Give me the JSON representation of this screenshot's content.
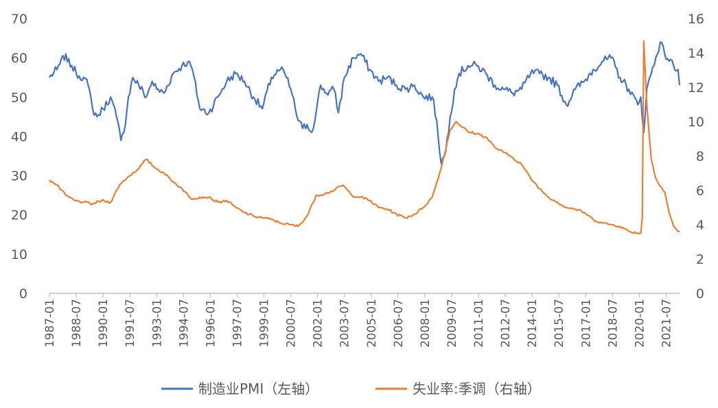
{
  "chart_data": {
    "type": "line",
    "title": "",
    "y_left": {
      "min": 0,
      "max": 70,
      "step": 10,
      "ticks": [
        "0",
        "10",
        "20",
        "30",
        "40",
        "50",
        "60",
        "70"
      ]
    },
    "y_right": {
      "min": 0,
      "max": 16,
      "step": 2,
      "ticks": [
        "0",
        "2",
        "4",
        "6",
        "8",
        "10",
        "12",
        "14",
        "16"
      ]
    },
    "x_range": [
      "1987-01",
      "2022-04"
    ],
    "x_tick_labels": [
      "1987-01",
      "1988-07",
      "1990-01",
      "1991-07",
      "1993-01",
      "1994-07",
      "1996-01",
      "1997-07",
      "1999-01",
      "2000-07",
      "2002-01",
      "2003-07",
      "2005-01",
      "2006-07",
      "2008-01",
      "2009-07",
      "2011-01",
      "2012-07",
      "2014-01",
      "2015-07",
      "2017-01",
      "2018-07",
      "2020-01",
      "2021-07"
    ],
    "grid": false,
    "legend_position": "bottom",
    "series": [
      {
        "name": "制造业PMI（左轴）",
        "axis": "left",
        "color": "#4472C4",
        "points": [
          [
            "1987-01",
            55
          ],
          [
            "1987-06",
            57
          ],
          [
            "1987-12",
            61
          ],
          [
            "1988-01",
            59
          ],
          [
            "1988-04",
            58
          ],
          [
            "1988-07",
            56
          ],
          [
            "1988-12",
            55
          ],
          [
            "1989-03",
            53
          ],
          [
            "1989-06",
            47
          ],
          [
            "1989-09",
            45
          ],
          [
            "1990-01",
            47
          ],
          [
            "1990-06",
            50
          ],
          [
            "1990-10",
            45
          ],
          [
            "1991-01",
            39
          ],
          [
            "1991-03",
            41
          ],
          [
            "1991-06",
            50
          ],
          [
            "1991-09",
            55
          ],
          [
            "1992-01",
            53
          ],
          [
            "1992-06",
            50
          ],
          [
            "1992-10",
            54
          ],
          [
            "1993-01",
            52
          ],
          [
            "1993-06",
            51
          ],
          [
            "1993-12",
            56
          ],
          [
            "1994-06",
            58
          ],
          [
            "1994-10",
            59
          ],
          [
            "1995-01",
            57
          ],
          [
            "1995-06",
            47
          ],
          [
            "1995-12",
            46
          ],
          [
            "1996-06",
            50
          ],
          [
            "1996-12",
            54
          ],
          [
            "1997-06",
            56
          ],
          [
            "1997-12",
            54
          ],
          [
            "1998-06",
            50
          ],
          [
            "1998-12",
            47
          ],
          [
            "1999-06",
            55
          ],
          [
            "1999-12",
            57
          ],
          [
            "2000-03",
            56
          ],
          [
            "2000-07",
            52
          ],
          [
            "2000-12",
            44
          ],
          [
            "2001-03",
            42
          ],
          [
            "2001-06",
            43
          ],
          [
            "2001-09",
            41
          ],
          [
            "2001-12",
            46
          ],
          [
            "2002-03",
            53
          ],
          [
            "2002-07",
            51
          ],
          [
            "2002-12",
            52
          ],
          [
            "2003-03",
            46
          ],
          [
            "2003-07",
            55
          ],
          [
            "2004-01",
            60
          ],
          [
            "2004-06",
            61
          ],
          [
            "2004-12",
            57
          ],
          [
            "2005-06",
            54
          ],
          [
            "2005-12",
            55
          ],
          [
            "2006-06",
            53
          ],
          [
            "2006-12",
            52
          ],
          [
            "2007-06",
            53
          ],
          [
            "2007-12",
            50
          ],
          [
            "2008-06",
            50
          ],
          [
            "2008-09",
            44
          ],
          [
            "2008-12",
            33
          ],
          [
            "2009-03",
            36
          ],
          [
            "2009-06",
            45
          ],
          [
            "2009-09",
            52
          ],
          [
            "2009-12",
            56
          ],
          [
            "2010-06",
            58
          ],
          [
            "2010-12",
            58
          ],
          [
            "2011-06",
            56
          ],
          [
            "2011-12",
            53
          ],
          [
            "2012-06",
            52
          ],
          [
            "2012-12",
            51
          ],
          [
            "2013-06",
            52
          ],
          [
            "2013-12",
            56
          ],
          [
            "2014-06",
            56
          ],
          [
            "2014-12",
            55
          ],
          [
            "2015-06",
            53
          ],
          [
            "2015-12",
            48
          ],
          [
            "2016-06",
            52
          ],
          [
            "2016-12",
            54
          ],
          [
            "2017-06",
            57
          ],
          [
            "2017-12",
            59
          ],
          [
            "2018-06",
            60
          ],
          [
            "2018-12",
            55
          ],
          [
            "2019-06",
            52
          ],
          [
            "2019-12",
            48
          ],
          [
            "2020-02",
            50
          ],
          [
            "2020-04",
            41
          ],
          [
            "2020-06",
            52
          ],
          [
            "2020-12",
            60
          ],
          [
            "2021-03",
            64
          ],
          [
            "2021-06",
            61
          ],
          [
            "2021-12",
            58
          ],
          [
            "2022-03",
            57
          ],
          [
            "2022-04",
            53
          ]
        ]
      },
      {
        "name": "失业率:季调（右轴）",
        "axis": "right",
        "color": "#ED7D31",
        "points": [
          [
            "1987-01",
            6.6
          ],
          [
            "1987-06",
            6.3
          ],
          [
            "1987-12",
            5.7
          ],
          [
            "1988-06",
            5.4
          ],
          [
            "1988-12",
            5.3
          ],
          [
            "1989-06",
            5.2
          ],
          [
            "1989-12",
            5.4
          ],
          [
            "1990-06",
            5.3
          ],
          [
            "1990-12",
            6.3
          ],
          [
            "1991-06",
            6.8
          ],
          [
            "1991-12",
            7.2
          ],
          [
            "1992-06",
            7.8
          ],
          [
            "1992-12",
            7.3
          ],
          [
            "1993-06",
            7.0
          ],
          [
            "1993-12",
            6.5
          ],
          [
            "1994-06",
            6.1
          ],
          [
            "1994-12",
            5.5
          ],
          [
            "1995-06",
            5.6
          ],
          [
            "1995-12",
            5.6
          ],
          [
            "1996-06",
            5.3
          ],
          [
            "1996-12",
            5.4
          ],
          [
            "1997-06",
            5.0
          ],
          [
            "1997-12",
            4.7
          ],
          [
            "1998-06",
            4.5
          ],
          [
            "1998-12",
            4.4
          ],
          [
            "1999-06",
            4.3
          ],
          [
            "1999-12",
            4.1
          ],
          [
            "2000-06",
            4.0
          ],
          [
            "2000-12",
            3.9
          ],
          [
            "2001-06",
            4.5
          ],
          [
            "2001-12",
            5.7
          ],
          [
            "2002-06",
            5.8
          ],
          [
            "2002-12",
            6.0
          ],
          [
            "2003-06",
            6.3
          ],
          [
            "2003-12",
            5.7
          ],
          [
            "2004-06",
            5.6
          ],
          [
            "2004-12",
            5.4
          ],
          [
            "2005-06",
            5.0
          ],
          [
            "2005-12",
            4.9
          ],
          [
            "2006-06",
            4.6
          ],
          [
            "2006-12",
            4.4
          ],
          [
            "2007-06",
            4.6
          ],
          [
            "2007-12",
            5.0
          ],
          [
            "2008-06",
            5.6
          ],
          [
            "2008-12",
            7.3
          ],
          [
            "2009-06",
            9.5
          ],
          [
            "2009-10",
            10.0
          ],
          [
            "2010-06",
            9.4
          ],
          [
            "2010-12",
            9.3
          ],
          [
            "2011-06",
            9.1
          ],
          [
            "2011-12",
            8.5
          ],
          [
            "2012-06",
            8.2
          ],
          [
            "2012-12",
            7.9
          ],
          [
            "2013-06",
            7.5
          ],
          [
            "2013-12",
            6.7
          ],
          [
            "2014-06",
            6.1
          ],
          [
            "2014-12",
            5.6
          ],
          [
            "2015-06",
            5.3
          ],
          [
            "2015-12",
            5.0
          ],
          [
            "2016-06",
            4.9
          ],
          [
            "2016-12",
            4.7
          ],
          [
            "2017-06",
            4.3
          ],
          [
            "2017-12",
            4.1
          ],
          [
            "2018-06",
            4.0
          ],
          [
            "2018-12",
            3.9
          ],
          [
            "2019-06",
            3.6
          ],
          [
            "2019-12",
            3.5
          ],
          [
            "2020-02",
            3.5
          ],
          [
            "2020-03",
            4.4
          ],
          [
            "2020-04",
            14.7
          ],
          [
            "2020-06",
            11.0
          ],
          [
            "2020-09",
            7.8
          ],
          [
            "2020-12",
            6.7
          ],
          [
            "2021-06",
            5.9
          ],
          [
            "2021-09",
            4.7
          ],
          [
            "2021-12",
            3.9
          ],
          [
            "2022-03",
            3.6
          ],
          [
            "2022-04",
            3.6
          ]
        ]
      }
    ]
  }
}
